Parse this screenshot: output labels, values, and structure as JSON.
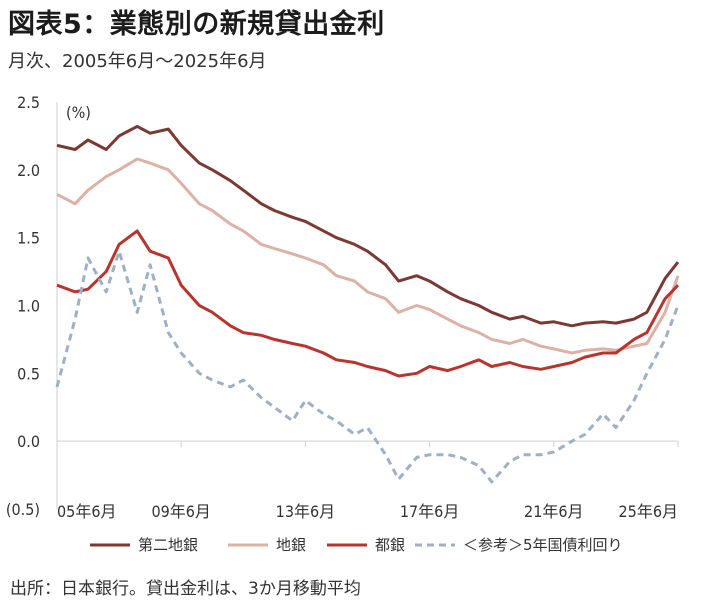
{
  "header": {
    "title": "図表5：業態別の新規貸出金利",
    "subtitle": "月次、2005年6月～2025年6月"
  },
  "footer": {
    "source": "出所：日本銀行。貸出金利は、3か月移動平均"
  },
  "colors": {
    "第二地銀": "#7a3a33",
    "地銀": "#dcb2a6",
    "都銀": "#b8352f",
    "国債": "#9fb0c4",
    "negative_tick": "#c0392b"
  },
  "chart_data": {
    "type": "line",
    "unit_label": "(%)",
    "ylim": [
      -0.5,
      2.5
    ],
    "yticks": [
      {
        "value": 2.5,
        "label": "2.5"
      },
      {
        "value": 2.0,
        "label": "2.0"
      },
      {
        "value": 1.5,
        "label": "1.5"
      },
      {
        "value": 1.0,
        "label": "1.0"
      },
      {
        "value": 0.5,
        "label": "0.5"
      },
      {
        "value": 0.0,
        "label": "0.0"
      },
      {
        "value": -0.5,
        "label": "(0.5)"
      }
    ],
    "xlim": [
      "2005-06",
      "2025-06"
    ],
    "xticks": [
      {
        "value": "2005-06",
        "label": "05年6月"
      },
      {
        "value": "2009-06",
        "label": "09年6月"
      },
      {
        "value": "2013-06",
        "label": "13年6月"
      },
      {
        "value": "2017-06",
        "label": "17年6月"
      },
      {
        "value": "2021-06",
        "label": "21年6月"
      },
      {
        "value": "2025-06",
        "label": "25年6月"
      }
    ],
    "grid": false,
    "legend_position": "bottom",
    "series": [
      {
        "name": "第二地銀",
        "style": "solid",
        "points": [
          [
            "2005-06",
            2.18
          ],
          [
            "2006-01",
            2.15
          ],
          [
            "2006-06",
            2.22
          ],
          [
            "2007-01",
            2.15
          ],
          [
            "2007-06",
            2.25
          ],
          [
            "2008-01",
            2.32
          ],
          [
            "2008-06",
            2.27
          ],
          [
            "2009-01",
            2.3
          ],
          [
            "2009-06",
            2.18
          ],
          [
            "2010-01",
            2.05
          ],
          [
            "2010-06",
            2.0
          ],
          [
            "2011-01",
            1.92
          ],
          [
            "2011-06",
            1.85
          ],
          [
            "2012-01",
            1.75
          ],
          [
            "2012-06",
            1.7
          ],
          [
            "2013-01",
            1.65
          ],
          [
            "2013-06",
            1.62
          ],
          [
            "2014-01",
            1.55
          ],
          [
            "2014-06",
            1.5
          ],
          [
            "2015-01",
            1.45
          ],
          [
            "2015-06",
            1.4
          ],
          [
            "2016-01",
            1.3
          ],
          [
            "2016-06",
            1.18
          ],
          [
            "2017-01",
            1.22
          ],
          [
            "2017-06",
            1.18
          ],
          [
            "2018-01",
            1.1
          ],
          [
            "2018-06",
            1.05
          ],
          [
            "2019-01",
            1.0
          ],
          [
            "2019-06",
            0.95
          ],
          [
            "2020-01",
            0.9
          ],
          [
            "2020-06",
            0.92
          ],
          [
            "2021-01",
            0.87
          ],
          [
            "2021-06",
            0.88
          ],
          [
            "2022-01",
            0.85
          ],
          [
            "2022-06",
            0.87
          ],
          [
            "2023-01",
            0.88
          ],
          [
            "2023-06",
            0.87
          ],
          [
            "2024-01",
            0.9
          ],
          [
            "2024-06",
            0.95
          ],
          [
            "2025-01",
            1.2
          ],
          [
            "2025-06",
            1.32
          ]
        ]
      },
      {
        "name": "地銀",
        "style": "solid",
        "points": [
          [
            "2005-06",
            1.82
          ],
          [
            "2006-01",
            1.75
          ],
          [
            "2006-06",
            1.85
          ],
          [
            "2007-01",
            1.95
          ],
          [
            "2007-06",
            2.0
          ],
          [
            "2008-01",
            2.08
          ],
          [
            "2008-06",
            2.05
          ],
          [
            "2009-01",
            2.0
          ],
          [
            "2009-06",
            1.9
          ],
          [
            "2010-01",
            1.75
          ],
          [
            "2010-06",
            1.7
          ],
          [
            "2011-01",
            1.6
          ],
          [
            "2011-06",
            1.55
          ],
          [
            "2012-01",
            1.45
          ],
          [
            "2012-06",
            1.42
          ],
          [
            "2013-01",
            1.38
          ],
          [
            "2013-06",
            1.35
          ],
          [
            "2014-01",
            1.3
          ],
          [
            "2014-06",
            1.22
          ],
          [
            "2015-01",
            1.18
          ],
          [
            "2015-06",
            1.1
          ],
          [
            "2016-01",
            1.05
          ],
          [
            "2016-06",
            0.95
          ],
          [
            "2017-01",
            1.0
          ],
          [
            "2017-06",
            0.97
          ],
          [
            "2018-01",
            0.9
          ],
          [
            "2018-06",
            0.85
          ],
          [
            "2019-01",
            0.8
          ],
          [
            "2019-06",
            0.75
          ],
          [
            "2020-01",
            0.72
          ],
          [
            "2020-06",
            0.75
          ],
          [
            "2021-01",
            0.7
          ],
          [
            "2021-06",
            0.68
          ],
          [
            "2022-01",
            0.65
          ],
          [
            "2022-06",
            0.67
          ],
          [
            "2023-01",
            0.68
          ],
          [
            "2023-06",
            0.67
          ],
          [
            "2024-01",
            0.7
          ],
          [
            "2024-06",
            0.72
          ],
          [
            "2025-01",
            0.95
          ],
          [
            "2025-06",
            1.22
          ]
        ]
      },
      {
        "name": "都銀",
        "style": "solid",
        "points": [
          [
            "2005-06",
            1.15
          ],
          [
            "2006-01",
            1.1
          ],
          [
            "2006-06",
            1.12
          ],
          [
            "2007-01",
            1.25
          ],
          [
            "2007-06",
            1.45
          ],
          [
            "2008-01",
            1.55
          ],
          [
            "2008-06",
            1.4
          ],
          [
            "2009-01",
            1.35
          ],
          [
            "2009-06",
            1.15
          ],
          [
            "2010-01",
            1.0
          ],
          [
            "2010-06",
            0.95
          ],
          [
            "2011-01",
            0.85
          ],
          [
            "2011-06",
            0.8
          ],
          [
            "2012-01",
            0.78
          ],
          [
            "2012-06",
            0.75
          ],
          [
            "2013-01",
            0.72
          ],
          [
            "2013-06",
            0.7
          ],
          [
            "2014-01",
            0.65
          ],
          [
            "2014-06",
            0.6
          ],
          [
            "2015-01",
            0.58
          ],
          [
            "2015-06",
            0.55
          ],
          [
            "2016-01",
            0.52
          ],
          [
            "2016-06",
            0.48
          ],
          [
            "2017-01",
            0.5
          ],
          [
            "2017-06",
            0.55
          ],
          [
            "2018-01",
            0.52
          ],
          [
            "2018-06",
            0.55
          ],
          [
            "2019-01",
            0.6
          ],
          [
            "2019-06",
            0.55
          ],
          [
            "2020-01",
            0.58
          ],
          [
            "2020-06",
            0.55
          ],
          [
            "2021-01",
            0.53
          ],
          [
            "2021-06",
            0.55
          ],
          [
            "2022-01",
            0.58
          ],
          [
            "2022-06",
            0.62
          ],
          [
            "2023-01",
            0.65
          ],
          [
            "2023-06",
            0.65
          ],
          [
            "2024-01",
            0.75
          ],
          [
            "2024-06",
            0.8
          ],
          [
            "2025-01",
            1.05
          ],
          [
            "2025-06",
            1.15
          ]
        ]
      },
      {
        "name": "＜参考＞5年国債利回り",
        "style": "dashed",
        "points": [
          [
            "2005-06",
            0.4
          ],
          [
            "2006-01",
            0.9
          ],
          [
            "2006-06",
            1.35
          ],
          [
            "2007-01",
            1.1
          ],
          [
            "2007-06",
            1.4
          ],
          [
            "2008-01",
            0.95
          ],
          [
            "2008-06",
            1.3
          ],
          [
            "2009-01",
            0.8
          ],
          [
            "2009-06",
            0.65
          ],
          [
            "2010-01",
            0.5
          ],
          [
            "2010-06",
            0.45
          ],
          [
            "2011-01",
            0.4
          ],
          [
            "2011-06",
            0.45
          ],
          [
            "2012-01",
            0.32
          ],
          [
            "2012-06",
            0.25
          ],
          [
            "2013-01",
            0.15
          ],
          [
            "2013-06",
            0.3
          ],
          [
            "2014-01",
            0.2
          ],
          [
            "2014-06",
            0.15
          ],
          [
            "2015-01",
            0.05
          ],
          [
            "2015-06",
            0.1
          ],
          [
            "2016-01",
            -0.1
          ],
          [
            "2016-06",
            -0.28
          ],
          [
            "2017-01",
            -0.12
          ],
          [
            "2017-06",
            -0.1
          ],
          [
            "2018-01",
            -0.1
          ],
          [
            "2018-06",
            -0.12
          ],
          [
            "2019-01",
            -0.18
          ],
          [
            "2019-06",
            -0.3
          ],
          [
            "2020-01",
            -0.15
          ],
          [
            "2020-06",
            -0.1
          ],
          [
            "2021-01",
            -0.1
          ],
          [
            "2021-06",
            -0.08
          ],
          [
            "2022-01",
            0.0
          ],
          [
            "2022-06",
            0.05
          ],
          [
            "2023-01",
            0.2
          ],
          [
            "2023-06",
            0.1
          ],
          [
            "2024-01",
            0.3
          ],
          [
            "2024-06",
            0.5
          ],
          [
            "2025-01",
            0.75
          ],
          [
            "2025-06",
            1.0
          ]
        ]
      }
    ]
  }
}
